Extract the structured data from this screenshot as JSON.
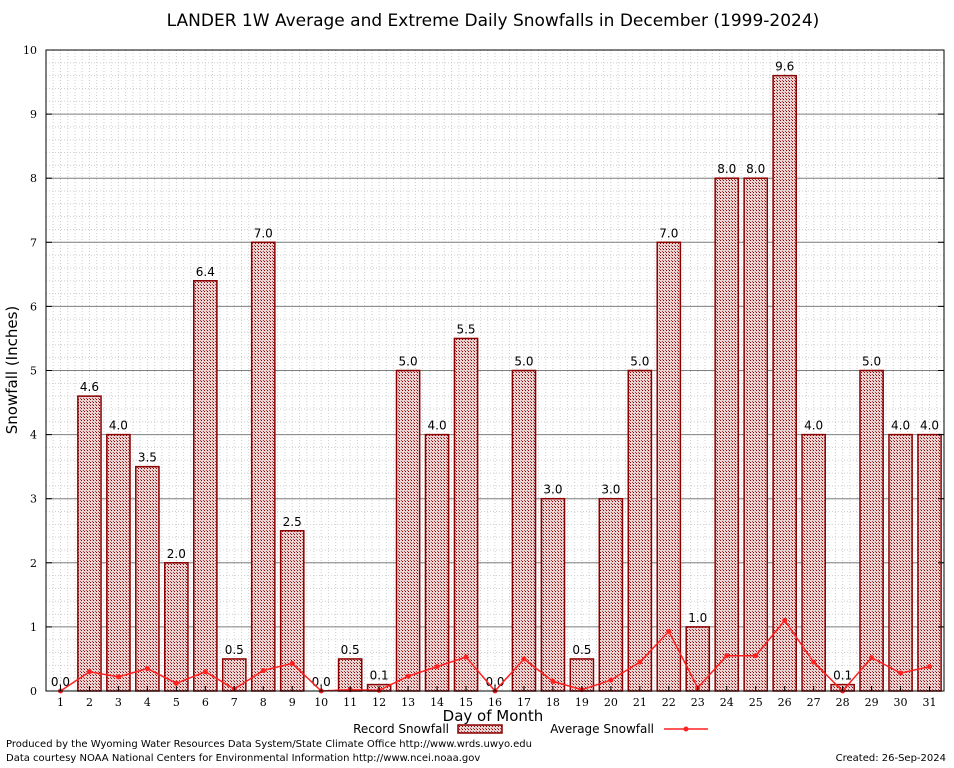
{
  "chart_data": {
    "type": "bar",
    "title": "LANDER 1W Average and Extreme Daily Snowfalls in December (1999-2024)",
    "xlabel": "Day of Month",
    "ylabel": "Snowfall (Inches)",
    "ylim": [
      0,
      10
    ],
    "yticks": [
      0,
      1,
      2,
      3,
      4,
      5,
      6,
      7,
      8,
      9,
      10
    ],
    "categories": [
      "1",
      "2",
      "3",
      "4",
      "5",
      "6",
      "7",
      "8",
      "9",
      "10",
      "11",
      "12",
      "13",
      "14",
      "15",
      "16",
      "17",
      "18",
      "19",
      "20",
      "21",
      "22",
      "23",
      "24",
      "25",
      "26",
      "27",
      "28",
      "29",
      "30",
      "31"
    ],
    "series": [
      {
        "name": "Record Snowfall",
        "kind": "bar",
        "values": [
          0.0,
          4.6,
          4.0,
          3.5,
          2.0,
          6.4,
          0.5,
          7.0,
          2.5,
          0.0,
          0.5,
          0.1,
          5.0,
          4.0,
          5.5,
          0.0,
          5.0,
          3.0,
          0.5,
          3.0,
          5.0,
          7.0,
          1.0,
          8.0,
          8.0,
          9.6,
          4.0,
          0.1,
          5.0,
          4.0,
          4.0
        ],
        "labels": [
          "0.0",
          "4.6",
          "4.0",
          "3.5",
          "2.0",
          "6.4",
          "0.5",
          "7.0",
          "2.5",
          "0.0",
          "0.5",
          "0.1",
          "5.0",
          "4.0",
          "5.5",
          "0.0",
          "5.0",
          "3.0",
          "0.5",
          "3.0",
          "5.0",
          "7.0",
          "1.0",
          "8.0",
          "8.0",
          "9.6",
          "4.0",
          "0.1",
          "5.0",
          "4.0",
          "4.0"
        ]
      },
      {
        "name": "Average Snowfall",
        "kind": "line",
        "values": [
          0.0,
          0.3,
          0.22,
          0.35,
          0.12,
          0.3,
          0.03,
          0.32,
          0.43,
          0.0,
          0.02,
          0.01,
          0.23,
          0.38,
          0.53,
          0.0,
          0.5,
          0.15,
          0.02,
          0.17,
          0.45,
          0.93,
          0.05,
          0.55,
          0.55,
          1.1,
          0.45,
          0.0,
          0.52,
          0.28,
          0.38
        ]
      }
    ],
    "colors": {
      "bar_fill": "#c9a3a3",
      "bar_stroke": "#8b0000",
      "line": "#ff2020",
      "grid_minor": "#cfcfcf",
      "grid_major": "#808080"
    }
  },
  "footer": {
    "credit": "Produced by the Wyoming Water Resources Data System/State Climate Office http://www.wrds.uwyo.edu",
    "source": "Data courtesy NOAA National Centers for Environmental Information http://www.ncei.noaa.gov",
    "created": "Created: 26-Sep-2024"
  }
}
